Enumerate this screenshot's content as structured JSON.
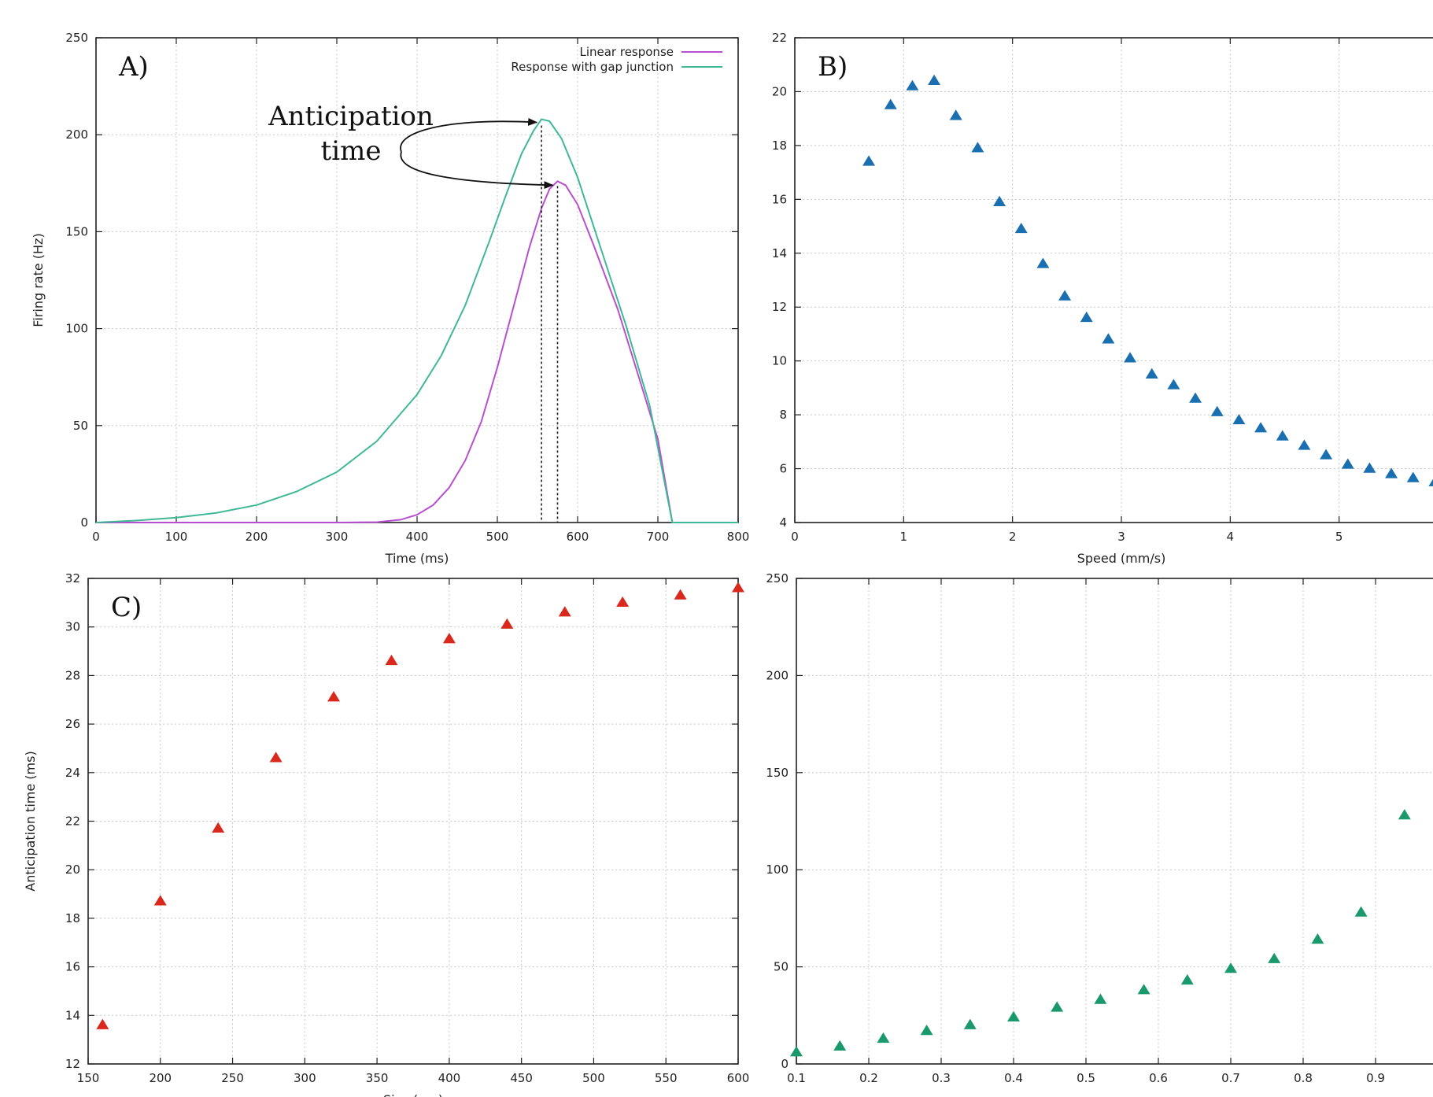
{
  "chart_data": [
    {
      "id": "A",
      "type": "line",
      "panel_label": "A)",
      "xlabel": "Time (ms)",
      "ylabel": "Firing rate (Hz)",
      "xlim": [
        0,
        800
      ],
      "ylim": [
        0,
        250
      ],
      "xticks": [
        0,
        100,
        200,
        300,
        400,
        500,
        600,
        700,
        800
      ],
      "yticks": [
        0,
        50,
        100,
        150,
        200,
        250
      ],
      "grid": true,
      "legend": "top-right",
      "series": [
        {
          "name": "Linear response",
          "color": "#b84fd0",
          "points": [
            [
              0,
              0
            ],
            [
              300,
              0
            ],
            [
              350,
              0.2
            ],
            [
              380,
              1.5
            ],
            [
              400,
              4
            ],
            [
              420,
              9
            ],
            [
              440,
              18
            ],
            [
              460,
              32
            ],
            [
              480,
              52
            ],
            [
              500,
              80
            ],
            [
              520,
              111
            ],
            [
              540,
              142
            ],
            [
              555,
              162
            ],
            [
              565,
              172
            ],
            [
              575,
              176
            ],
            [
              585,
              174
            ],
            [
              600,
              164
            ],
            [
              620,
              143
            ],
            [
              650,
              110
            ],
            [
              680,
              70
            ],
            [
              700,
              43
            ],
            [
              718,
              0
            ],
            [
              800,
              0
            ]
          ]
        },
        {
          "name": "Response with gap junction",
          "color": "#3fb898",
          "points": [
            [
              0,
              0
            ],
            [
              50,
              1
            ],
            [
              100,
              2.5
            ],
            [
              150,
              5
            ],
            [
              200,
              9
            ],
            [
              250,
              16
            ],
            [
              300,
              26
            ],
            [
              350,
              42
            ],
            [
              400,
              66
            ],
            [
              430,
              86
            ],
            [
              460,
              112
            ],
            [
              490,
              145
            ],
            [
              510,
              168
            ],
            [
              530,
              190
            ],
            [
              545,
              202
            ],
            [
              555,
              208
            ],
            [
              565,
              207
            ],
            [
              580,
              198
            ],
            [
              600,
              178
            ],
            [
              630,
              140
            ],
            [
              660,
              102
            ],
            [
              690,
              60
            ],
            [
              718,
              0
            ],
            [
              800,
              0
            ]
          ]
        }
      ],
      "annotation": {
        "text_line1": "Anticipation",
        "text_line2": "time",
        "peak_gap_time": 555,
        "peak_gap_value": 208,
        "peak_linear_time": 575,
        "peak_linear_value": 176
      }
    },
    {
      "id": "B",
      "type": "scatter",
      "panel_label": "B)",
      "xlabel": "Speed (mm/s)",
      "ylabel": "",
      "xlim": [
        0,
        6
      ],
      "ylim": [
        4,
        22
      ],
      "xticks": [
        0,
        1,
        2,
        3,
        4,
        5
      ],
      "yticks": [
        4,
        6,
        8,
        10,
        12,
        14,
        16,
        18,
        20,
        22
      ],
      "grid": true,
      "marker": "triangle",
      "color": "#1a6fb0",
      "x": [
        0.68,
        0.88,
        1.08,
        1.28,
        1.48,
        1.68,
        1.88,
        2.08,
        2.28,
        2.48,
        2.68,
        2.88,
        3.08,
        3.28,
        3.48,
        3.68,
        3.88,
        4.08,
        4.28,
        4.48,
        4.68,
        4.88,
        5.08,
        5.28,
        5.48,
        5.68,
        5.88
      ],
      "y": [
        17.4,
        19.5,
        20.2,
        20.4,
        19.1,
        17.9,
        15.9,
        14.9,
        13.6,
        12.4,
        11.6,
        10.8,
        10.1,
        9.5,
        9.1,
        8.6,
        8.1,
        7.8,
        7.5,
        7.2,
        6.85,
        6.5,
        6.15,
        6.0,
        5.8,
        5.65,
        5.5
      ]
    },
    {
      "id": "C",
      "type": "scatter",
      "panel_label": "C)",
      "xlabel": "Size (µm)",
      "ylabel": "Anticipation time (ms)",
      "xlim": [
        150,
        600
      ],
      "ylim": [
        12,
        32
      ],
      "xticks": [
        150,
        200,
        250,
        300,
        350,
        400,
        450,
        500,
        550,
        600
      ],
      "yticks": [
        12,
        14,
        16,
        18,
        20,
        22,
        24,
        26,
        28,
        30,
        32
      ],
      "grid": true,
      "marker": "triangle",
      "color": "#d8291c",
      "x": [
        160,
        200,
        240,
        280,
        320,
        360,
        400,
        440,
        480,
        520,
        560,
        600
      ],
      "y": [
        13.6,
        18.7,
        21.7,
        24.6,
        27.1,
        28.6,
        29.5,
        30.1,
        30.6,
        31.0,
        31.3,
        31.6
      ]
    },
    {
      "id": "D",
      "type": "scatter",
      "panel_label": "",
      "xlabel": "",
      "ylabel": "",
      "xlim": [
        0.1,
        1.0
      ],
      "ylim": [
        0,
        250
      ],
      "xticks": [
        0.1,
        0.2,
        0.3,
        0.4,
        0.5,
        0.6,
        0.7,
        0.8,
        0.9
      ],
      "yticks": [
        0,
        50,
        100,
        150,
        200,
        250
      ],
      "grid": true,
      "marker": "triangle",
      "color": "#1a9a6c",
      "x": [
        0.1,
        0.16,
        0.22,
        0.28,
        0.34,
        0.4,
        0.46,
        0.52,
        0.58,
        0.64,
        0.7,
        0.76,
        0.82,
        0.88,
        0.94
      ],
      "y": [
        6,
        9,
        13,
        17,
        20,
        24,
        29,
        33,
        38,
        43,
        49,
        54,
        64,
        78,
        128
      ]
    }
  ]
}
